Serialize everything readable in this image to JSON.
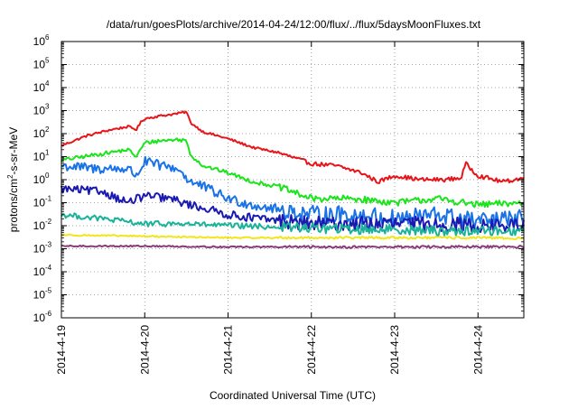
{
  "chart_data": {
    "type": "line",
    "title": "/data/run/goesPlots/archive/2014-04-24/12:00/flux/../flux/5daysMoonFluxes.txt",
    "xlabel": "Coordinated Universal Time (UTC)",
    "ylabel": {
      "prefix": "protons/cm",
      "sup": "2",
      "suffix": "-s-sr-MeV"
    },
    "yscale": "log",
    "ylim": [
      -6,
      6
    ],
    "xlim": [
      0,
      5.55
    ],
    "grid": true,
    "x_ticks": [
      {
        "x": 0,
        "label": "2014-4-19"
      },
      {
        "x": 1,
        "label": "2014-4-20"
      },
      {
        "x": 2,
        "label": "2014-4-21"
      },
      {
        "x": 3,
        "label": "2014-4-22"
      },
      {
        "x": 4,
        "label": "2014-4-23"
      },
      {
        "x": 5,
        "label": "2014-4-24"
      }
    ],
    "y_ticks": [
      {
        "exp": 6,
        "base": "10",
        "sup": "6"
      },
      {
        "exp": 5,
        "base": "10",
        "sup": "5"
      },
      {
        "exp": 4,
        "base": "10",
        "sup": "4"
      },
      {
        "exp": 3,
        "base": "10",
        "sup": "3"
      },
      {
        "exp": 2,
        "base": "10",
        "sup": "2"
      },
      {
        "exp": 1,
        "base": "10",
        "sup": "1"
      },
      {
        "exp": 0,
        "base": "10",
        "sup": "0"
      },
      {
        "exp": -1,
        "base": "10",
        "sup": "-1"
      },
      {
        "exp": -2,
        "base": "10",
        "sup": "-2"
      },
      {
        "exp": -3,
        "base": "10",
        "sup": "-3"
      },
      {
        "exp": -4,
        "base": "10",
        "sup": "-4"
      },
      {
        "exp": -5,
        "base": "10",
        "sup": "-5"
      },
      {
        "exp": -6,
        "base": "10",
        "sup": "-6"
      }
    ],
    "series": [
      {
        "color": "#e8141a",
        "noise": 0.05,
        "x": [
          0,
          0.3,
          0.6,
          0.8,
          0.9,
          0.95,
          1.0,
          1.2,
          1.4,
          1.5,
          1.55,
          1.7,
          2.0,
          2.3,
          2.6,
          3.0,
          3.3,
          3.6,
          3.8,
          4.0,
          4.3,
          4.6,
          4.8,
          4.85,
          5.0,
          5.3,
          5.55
        ],
        "y": [
          30,
          80,
          150,
          200,
          150,
          300,
          450,
          600,
          750,
          900,
          300,
          120,
          60,
          25,
          15,
          5,
          4,
          2,
          0.8,
          1.5,
          1,
          1,
          1.2,
          5,
          1.5,
          0.8,
          1.2
        ]
      },
      {
        "color": "#1ae51a",
        "noise": 0.08,
        "x": [
          0,
          0.4,
          0.8,
          0.9,
          1.0,
          1.2,
          1.4,
          1.5,
          1.55,
          1.7,
          2.0,
          2.3,
          2.6,
          3.0,
          3.5,
          4.0,
          4.5,
          5.0,
          5.55
        ],
        "y": [
          7,
          12,
          20,
          10,
          40,
          50,
          55,
          50,
          12,
          4,
          2,
          0.8,
          0.5,
          0.15,
          0.15,
          0.1,
          0.15,
          0.08,
          0.1
        ]
      },
      {
        "color": "#1a73e6",
        "noise": 0.22,
        "x": [
          0,
          0.4,
          0.8,
          0.9,
          1.0,
          1.2,
          1.4,
          1.55,
          1.7,
          2.0,
          2.3,
          2.6,
          3.0,
          3.5,
          4.0,
          4.5,
          5.0,
          5.55
        ],
        "y": [
          4,
          3,
          3,
          1.5,
          6,
          4,
          3,
          0.8,
          0.5,
          0.15,
          0.08,
          0.05,
          0.03,
          0.03,
          0.02,
          0.03,
          0.015,
          0.02
        ]
      },
      {
        "color": "#1a1ab3",
        "noise": 0.18,
        "x": [
          0,
          0.5,
          0.8,
          1.0,
          1.3,
          1.55,
          1.7,
          2.0,
          2.5,
          3.0,
          3.5,
          4.0,
          4.5,
          5.0,
          5.55
        ],
        "y": [
          0.4,
          0.3,
          0.1,
          0.2,
          0.15,
          0.08,
          0.06,
          0.03,
          0.018,
          0.012,
          0.012,
          0.012,
          0.012,
          0.01,
          0.01
        ]
      },
      {
        "color": "#1ab39a",
        "noise": 0.12,
        "x": [
          0,
          0.5,
          1.0,
          1.5,
          2.0,
          2.5,
          3.0,
          3.5,
          4.0,
          4.5,
          5.0,
          5.55
        ],
        "y": [
          0.03,
          0.02,
          0.012,
          0.012,
          0.01,
          0.009,
          0.008,
          0.007,
          0.007,
          0.006,
          0.006,
          0.006
        ]
      },
      {
        "color": "#f2e61a",
        "noise": 0.03,
        "x": [
          0,
          1.0,
          2.0,
          3.0,
          4.0,
          5.0,
          5.55
        ],
        "y": [
          0.004,
          0.0035,
          0.003,
          0.003,
          0.003,
          0.003,
          0.0028
        ]
      },
      {
        "color": "#8a3a78",
        "noise": 0.03,
        "x": [
          0,
          1.0,
          2.0,
          3.0,
          4.0,
          5.0,
          5.55
        ],
        "y": [
          0.0013,
          0.0013,
          0.0012,
          0.0012,
          0.0012,
          0.0012,
          0.0012
        ]
      }
    ]
  }
}
